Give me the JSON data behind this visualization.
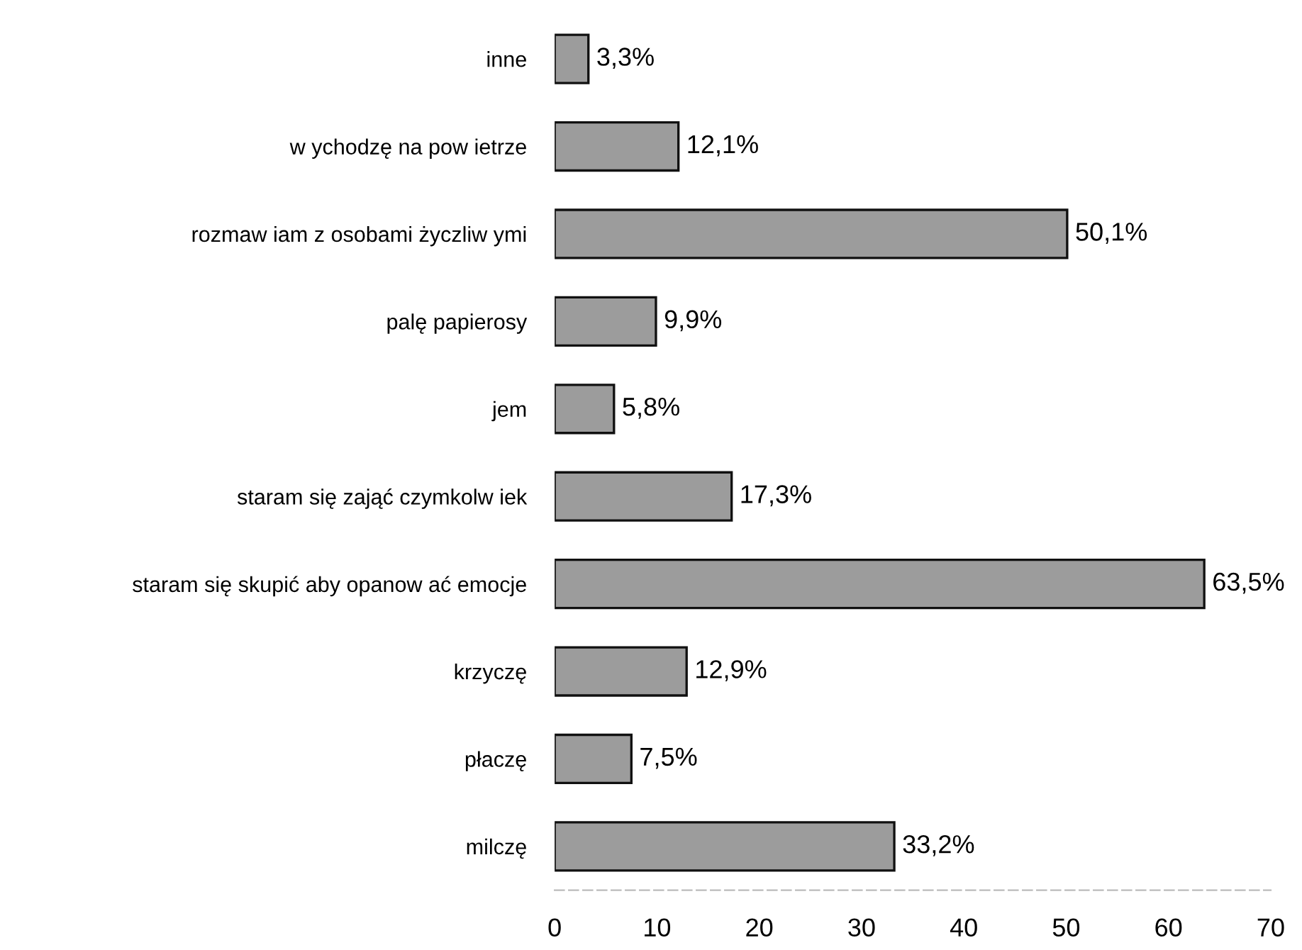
{
  "chart_data": {
    "type": "bar",
    "orientation": "horizontal",
    "categories": [
      "inne",
      "w ychodzę na pow ietrze",
      "rozmaw iam z osobami życzliw ymi",
      "palę papierosy",
      "jem",
      "staram się zająć czymkolw iek",
      "staram się skupić aby opanow ać emocje",
      "krzyczę",
      "płaczę",
      "milczę"
    ],
    "values": [
      3.3,
      12.1,
      50.1,
      9.9,
      5.8,
      17.3,
      63.5,
      12.9,
      7.5,
      33.2
    ],
    "value_labels": [
      "3,3%",
      "12,1%",
      "50,1%",
      "9,9%",
      "5,8%",
      "17,3%",
      "63,5%",
      "12,9%",
      "7,5%",
      "33,2%"
    ],
    "color": "#9c9c9c",
    "xlim": [
      0,
      70
    ],
    "xticks": [
      0,
      10,
      20,
      30,
      40,
      50,
      60,
      70
    ],
    "grid": false,
    "legend": false
  }
}
